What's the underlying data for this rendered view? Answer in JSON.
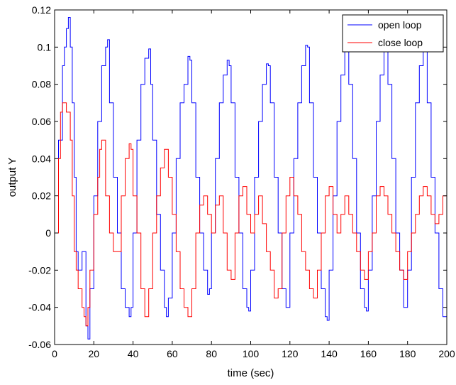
{
  "chart_data": {
    "type": "line",
    "xlabel": "time (sec)",
    "ylabel": "output Y",
    "xlim": [
      0,
      200
    ],
    "ylim": [
      -0.06,
      0.12
    ],
    "xticks": [
      0,
      20,
      40,
      60,
      80,
      100,
      120,
      140,
      160,
      180,
      200
    ],
    "yticks": [
      -0.06,
      -0.04,
      -0.02,
      0,
      0.02,
      0.04,
      0.06,
      0.08,
      0.1,
      0.12
    ],
    "xtick_labels": [
      "0",
      "20",
      "40",
      "60",
      "80",
      "100",
      "120",
      "140",
      "160",
      "180",
      "200"
    ],
    "ytick_labels": [
      "-0.06",
      "-0.04",
      "-0.02",
      "0",
      "0.02",
      "0.04",
      "0.06",
      "0.08",
      "0.1",
      "0.12"
    ],
    "legend_position": "top-right",
    "grid": false,
    "series": [
      {
        "name": "open loop",
        "color": "#0000ff",
        "x": [
          0,
          2,
          4,
          5,
          6,
          7,
          8,
          9,
          10,
          11,
          12,
          14,
          16,
          17,
          18,
          20,
          22,
          24,
          26,
          27,
          28,
          30,
          32,
          34,
          36,
          38,
          39,
          40,
          42,
          44,
          46,
          48,
          49,
          50,
          52,
          54,
          56,
          57,
          58,
          60,
          62,
          64,
          66,
          68,
          69,
          70,
          72,
          74,
          76,
          78,
          79,
          80,
          82,
          84,
          86,
          88,
          89,
          90,
          92,
          94,
          96,
          98,
          99,
          100,
          102,
          104,
          106,
          108,
          109,
          110,
          112,
          114,
          116,
          118,
          119,
          120,
          122,
          124,
          126,
          128,
          129,
          130,
          132,
          134,
          136,
          138,
          139,
          140,
          142,
          144,
          146,
          148,
          149,
          150,
          152,
          154,
          156,
          158,
          159,
          160,
          162,
          164,
          166,
          168,
          169,
          170,
          172,
          174,
          176,
          178,
          179,
          180,
          182,
          184,
          186,
          188,
          189,
          190,
          192,
          194,
          196,
          198,
          200
        ],
        "y": [
          0,
          0.05,
          0.09,
          0.1,
          0.11,
          0.116,
          0.1,
          0.07,
          0.03,
          -0.01,
          -0.02,
          -0.01,
          -0.05,
          -0.057,
          -0.03,
          0.02,
          0.06,
          0.09,
          0.1,
          0.104,
          0.07,
          0.03,
          0.0,
          -0.03,
          -0.04,
          -0.045,
          -0.04,
          0.0,
          0.05,
          0.08,
          0.094,
          0.099,
          0.08,
          0.05,
          0.01,
          -0.02,
          -0.04,
          -0.045,
          -0.035,
          0.0,
          0.04,
          0.07,
          0.08,
          0.095,
          0.093,
          0.07,
          0.03,
          0.0,
          -0.02,
          -0.033,
          -0.03,
          0.0,
          0.04,
          0.07,
          0.085,
          0.093,
          0.09,
          0.07,
          0.03,
          0.0,
          -0.03,
          -0.04,
          -0.042,
          -0.02,
          0.03,
          0.06,
          0.08,
          0.091,
          0.09,
          0.07,
          0.03,
          0.0,
          -0.03,
          -0.04,
          -0.04,
          0.0,
          0.04,
          0.07,
          0.09,
          0.101,
          0.1,
          0.07,
          0.03,
          0.0,
          -0.03,
          -0.045,
          -0.047,
          -0.02,
          0.02,
          0.06,
          0.085,
          0.1,
          0.1,
          0.08,
          0.04,
          0.0,
          -0.03,
          -0.04,
          -0.042,
          -0.02,
          0.02,
          0.06,
          0.085,
          0.1,
          0.101,
          0.08,
          0.04,
          0.0,
          -0.02,
          -0.04,
          -0.04,
          -0.02,
          0.03,
          0.07,
          0.09,
          0.1,
          0.1,
          0.07,
          0.03,
          0.0,
          -0.03,
          -0.045,
          0.02
        ]
      },
      {
        "name": "close loop",
        "color": "#ff0000",
        "x": [
          0,
          2,
          3,
          4,
          6,
          8,
          9,
          10,
          11,
          12,
          14,
          15,
          16,
          17,
          18,
          20,
          22,
          23,
          24,
          26,
          28,
          30,
          32,
          34,
          36,
          38,
          39,
          40,
          42,
          44,
          46,
          48,
          50,
          52,
          54,
          56,
          58,
          60,
          62,
          64,
          66,
          68,
          70,
          72,
          74,
          76,
          78,
          80,
          82,
          84,
          86,
          88,
          90,
          92,
          94,
          96,
          98,
          100,
          102,
          104,
          106,
          108,
          110,
          112,
          114,
          116,
          118,
          120,
          122,
          124,
          126,
          128,
          130,
          132,
          134,
          136,
          138,
          140,
          142,
          144,
          146,
          148,
          150,
          152,
          154,
          156,
          158,
          160,
          162,
          164,
          166,
          168,
          170,
          172,
          174,
          176,
          178,
          180,
          182,
          184,
          186,
          188,
          190,
          192,
          194,
          196,
          198,
          200
        ],
        "y": [
          0,
          0.04,
          0.065,
          0.07,
          0.065,
          0.05,
          0.02,
          -0.01,
          -0.02,
          -0.03,
          -0.04,
          -0.045,
          -0.05,
          -0.04,
          -0.02,
          0.01,
          0.03,
          0.045,
          0.05,
          0.02,
          0.0,
          -0.01,
          -0.01,
          0.02,
          0.04,
          0.048,
          0.045,
          0.02,
          0.0,
          -0.03,
          -0.045,
          -0.03,
          0.0,
          0.02,
          0.035,
          0.045,
          0.03,
          0.01,
          -0.01,
          -0.03,
          -0.04,
          -0.045,
          -0.03,
          0.0,
          0.015,
          0.02,
          0.01,
          0.0,
          0.015,
          0.02,
          0.0,
          -0.02,
          -0.025,
          0.0,
          0.02,
          0.025,
          0.01,
          0.0,
          0.01,
          0.02,
          0.005,
          -0.01,
          -0.02,
          -0.035,
          -0.03,
          0.0,
          0.02,
          0.03,
          0.02,
          0.01,
          -0.01,
          -0.02,
          -0.03,
          -0.035,
          -0.02,
          0.0,
          0.02,
          0.025,
          0.01,
          0.0,
          0.01,
          0.02,
          0.01,
          0.0,
          -0.01,
          -0.02,
          -0.025,
          -0.01,
          0.0,
          0.02,
          0.025,
          0.02,
          0.01,
          0.0,
          -0.01,
          -0.02,
          -0.025,
          -0.01,
          0.0,
          0.01,
          0.02,
          0.025,
          0.02,
          0.01,
          0.005,
          0.01,
          0.02,
          0.01
        ]
      }
    ]
  }
}
